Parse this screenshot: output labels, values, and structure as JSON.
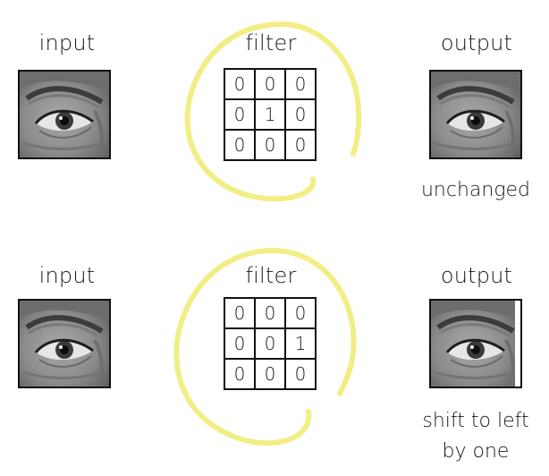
{
  "rows": [
    {
      "input_label": "input",
      "filter_label": "filter",
      "output_label": "output",
      "caption": "unchanged",
      "kernel": [
        [
          "0",
          "0",
          "0"
        ],
        [
          "0",
          "1",
          "0"
        ],
        [
          "0",
          "0",
          "0"
        ]
      ]
    },
    {
      "input_label": "input",
      "filter_label": "filter",
      "output_label": "output",
      "caption_line1": "shift to left",
      "caption_line2": "by one",
      "kernel": [
        [
          "0",
          "0",
          "0"
        ],
        [
          "0",
          "0",
          "1"
        ],
        [
          "0",
          "0",
          "0"
        ]
      ]
    }
  ],
  "colors": {
    "highlight": "#f2ee86",
    "border": "#111111"
  },
  "icons": [
    "eye-image"
  ]
}
